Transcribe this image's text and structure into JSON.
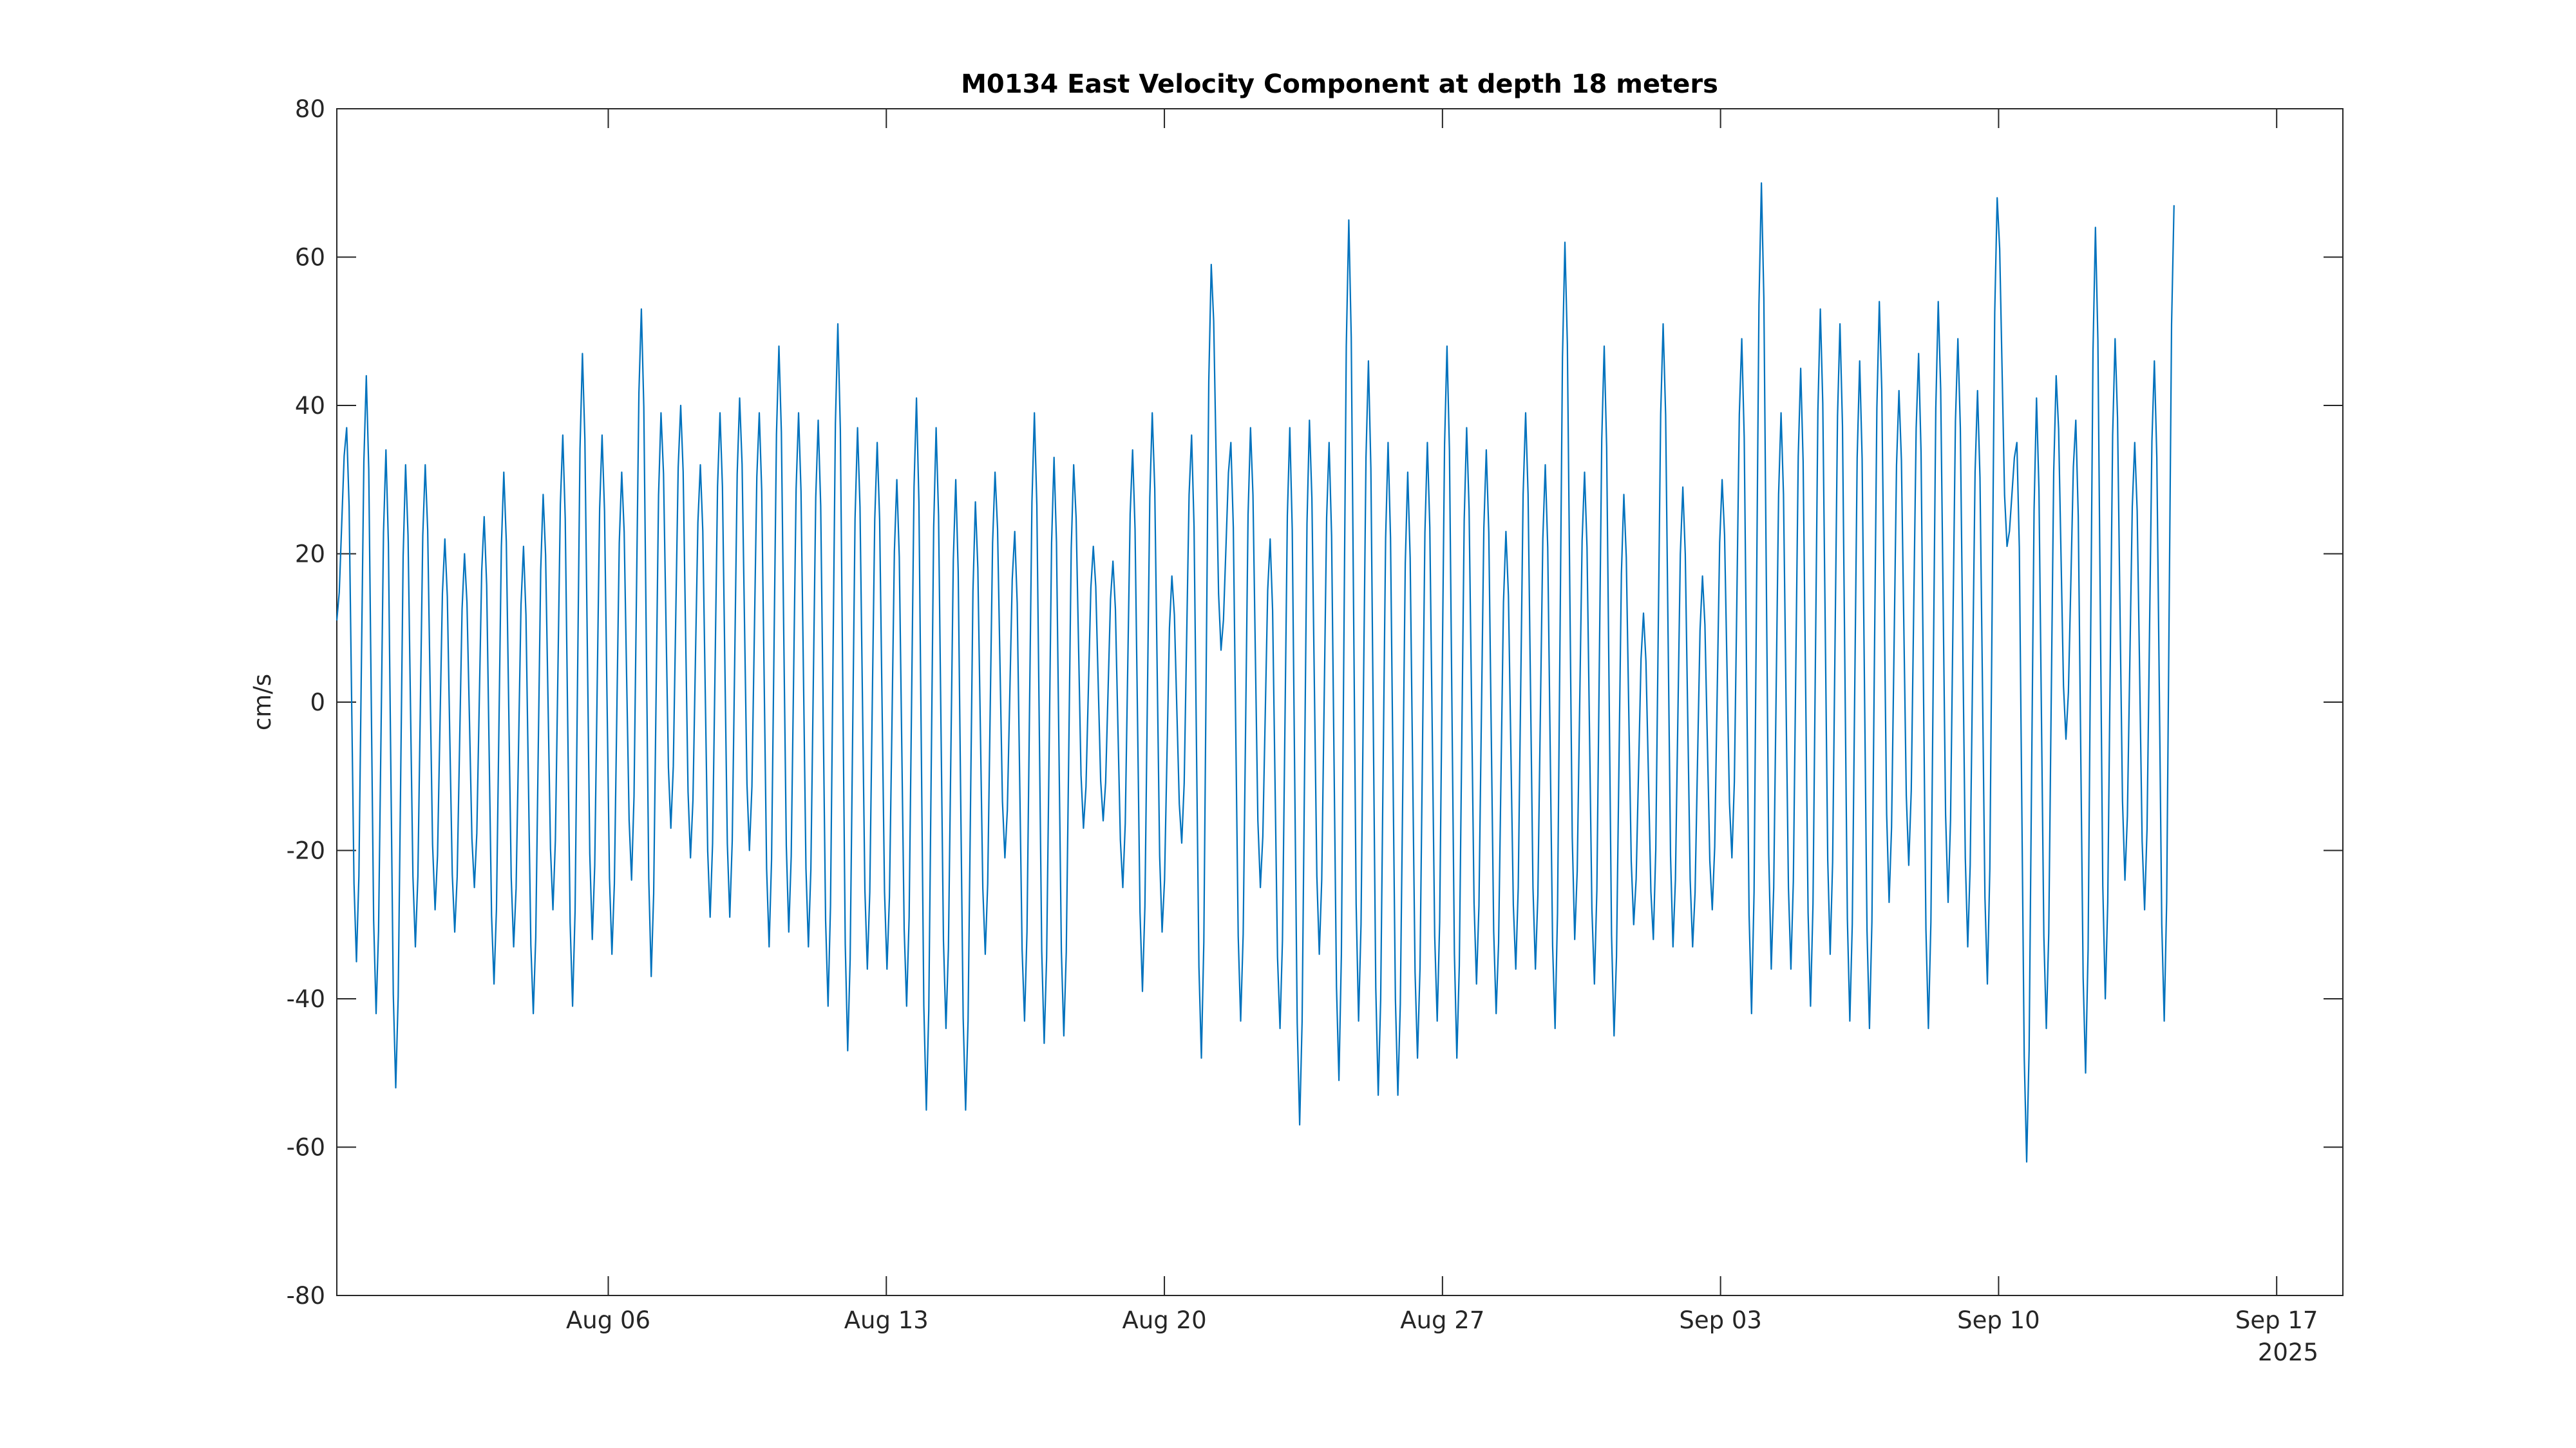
{
  "chart_data": {
    "type": "line",
    "title": "M0134 East Velocity Component at depth 18 meters",
    "xlabel": "",
    "ylabel": "cm/s",
    "year_label": "2025",
    "xlim": [
      "2025-07-30T04:00",
      "2025-09-18T16:00"
    ],
    "ylim": [
      -80,
      80
    ],
    "yticks": [
      -80,
      -60,
      -40,
      -20,
      0,
      20,
      40,
      60,
      80
    ],
    "ytick_labels": [
      "-80",
      "-60",
      "-40",
      "-20",
      "0",
      "20",
      "40",
      "60",
      "80"
    ],
    "xticks": [
      "2025-08-06",
      "2025-08-13",
      "2025-08-20",
      "2025-08-27",
      "2025-09-03",
      "2025-09-10",
      "2025-09-17"
    ],
    "xtick_labels": [
      "Aug 06",
      "Aug 13",
      "Aug 20",
      "Aug 27",
      "Sep 03",
      "Sep 10",
      "Sep 17"
    ],
    "grid": false,
    "series": [
      {
        "name": "East velocity",
        "color": "#0072BD",
        "x_start": "2025-07-30T04:00",
        "x_end": "2025-09-14T10:00",
        "sampling": "successive extrema (peaks/troughs), evenly spaced in time",
        "values": [
          11,
          37,
          -35,
          44,
          -42,
          34,
          -52,
          32,
          -33,
          32,
          -28,
          22,
          -31,
          20,
          -25,
          25,
          -38,
          31,
          -33,
          21,
          -42,
          28,
          -28,
          36,
          -41,
          47,
          -32,
          36,
          -34,
          31,
          -24,
          53,
          -37,
          39,
          -17,
          40,
          -21,
          32,
          -29,
          39,
          -29,
          41,
          -20,
          39,
          -33,
          48,
          -31,
          39,
          -33,
          38,
          -41,
          51,
          -47,
          37,
          -36,
          35,
          -36,
          30,
          -41,
          41,
          -55,
          37,
          -44,
          30,
          -55,
          27,
          -34,
          31,
          -21,
          23,
          -43,
          39,
          -46,
          33,
          -45,
          32,
          -17,
          21,
          -16,
          19,
          -25,
          34,
          -39,
          39,
          -31,
          17,
          -19,
          36,
          -48,
          59,
          7,
          35,
          -43,
          37,
          -25,
          22,
          -44,
          37,
          -57,
          38,
          -34,
          35,
          -51,
          65,
          -43,
          46,
          -53,
          35,
          -53,
          31,
          -48,
          35,
          -43,
          48,
          -48,
          37,
          -38,
          34,
          -42,
          23,
          -36,
          39,
          -36,
          32,
          -44,
          62,
          -32,
          31,
          -38,
          48,
          -45,
          28,
          -30,
          12,
          -32,
          51,
          -33,
          29,
          -33,
          17,
          -28,
          30,
          -21,
          49,
          -42,
          70,
          -36,
          39,
          -36,
          45,
          -41,
          53,
          -34,
          51,
          -43,
          46,
          -44,
          54,
          -27,
          42,
          -22,
          47,
          -44,
          54,
          -27,
          49,
          -33,
          42,
          -38,
          68,
          21,
          35,
          -62,
          41,
          -44,
          44,
          -5,
          38,
          -50,
          64,
          -40,
          49,
          -24,
          35,
          -28,
          46,
          -43,
          67
        ]
      }
    ]
  }
}
